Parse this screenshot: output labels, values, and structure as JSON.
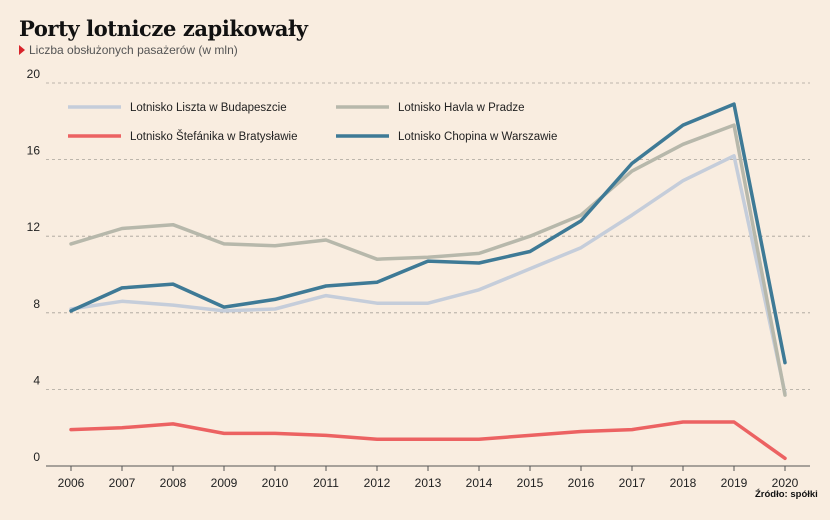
{
  "header": {
    "title": "Porty lotnicze zapikowały",
    "subtitle": "Liczba obsłużonych pasażerów (w mln)",
    "source": "Źródło: spółki"
  },
  "chart_data": {
    "type": "line",
    "title": "Porty lotnicze zapikowały",
    "subtitle": "Liczba obsłużonych pasażerów (w mln)",
    "xlabel": "",
    "ylabel": "",
    "ylim": [
      0,
      20
    ],
    "yticks": [
      0,
      4,
      8,
      12,
      16,
      20
    ],
    "grid": true,
    "legend_position": "top",
    "x": [
      "2006",
      "2007",
      "2008",
      "2009",
      "2010",
      "2011",
      "2012",
      "2013",
      "2014",
      "2015",
      "2016",
      "2017",
      "2018",
      "2019",
      "2020"
    ],
    "series": [
      {
        "name": "Lotnisko Liszta w Budapeszcie",
        "color": "#c5cdda",
        "values": [
          8.2,
          8.6,
          8.4,
          8.1,
          8.2,
          8.9,
          8.5,
          8.5,
          9.2,
          10.3,
          11.4,
          13.1,
          14.9,
          16.2,
          3.8
        ]
      },
      {
        "name": "Lotnisko Havla w Pradze",
        "color": "#b7b8ab",
        "values": [
          11.6,
          12.4,
          12.6,
          11.6,
          11.5,
          11.8,
          10.8,
          10.9,
          11.1,
          12.0,
          13.1,
          15.4,
          16.8,
          17.8,
          3.7
        ]
      },
      {
        "name": "Lotnisko Štefánika w Bratysławie",
        "color": "#ec6262",
        "values": [
          1.9,
          2.0,
          2.2,
          1.7,
          1.7,
          1.6,
          1.4,
          1.4,
          1.4,
          1.6,
          1.8,
          1.9,
          2.3,
          2.3,
          0.4
        ]
      },
      {
        "name": "Lotnisko Chopina w Warszawie",
        "color": "#3e7a96",
        "values": [
          8.1,
          9.3,
          9.5,
          8.3,
          8.7,
          9.4,
          9.6,
          10.7,
          10.6,
          11.2,
          12.8,
          15.8,
          17.8,
          18.9,
          5.4
        ]
      }
    ]
  }
}
